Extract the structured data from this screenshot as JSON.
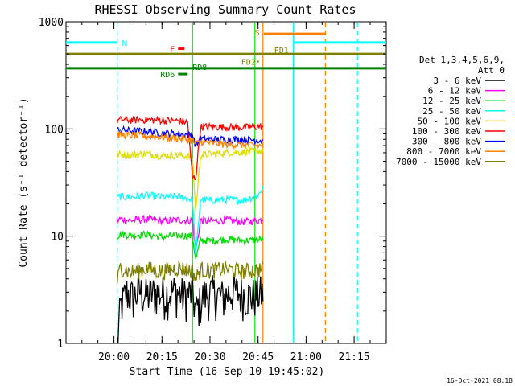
{
  "chart_data": {
    "type": "line",
    "title": "RHESSI Observing Summary Count Rates",
    "xlabel": "Start Time (16-Sep-10 19:45:02)",
    "ylabel": "Count Rate (s⁻¹ detector⁻¹)",
    "x_start": "19:45:02",
    "x_end": "21:25",
    "xlim_minutes": [
      0,
      100
    ],
    "ylim": [
      1,
      1000
    ],
    "y_scale": "log",
    "x_ticks": [
      "20:00",
      "20:15",
      "20:30",
      "20:45",
      "21:00",
      "21:15"
    ],
    "y_ticks": [
      "1",
      "10",
      "100",
      "1000"
    ],
    "legend_header": [
      "Det 1,3,4,5,6,9,",
      "Att 0"
    ],
    "legend_position": "right",
    "footer_date": "16-Oct-2021 08:18",
    "series": [
      {
        "name": "3 - 6 keV",
        "color": "#000000",
        "x": [
          16,
          17,
          19,
          21,
          23,
          25,
          28,
          31,
          34,
          37,
          39.5,
          40.5,
          43,
          46,
          49,
          52,
          55,
          58,
          61.5
        ],
        "y": [
          1,
          2.2,
          3.0,
          2.7,
          3.1,
          2.8,
          3.0,
          2.9,
          3.1,
          2.8,
          3.0,
          2.0,
          2.8,
          3.0,
          2.7,
          3.1,
          2.9,
          2.8,
          3.0
        ]
      },
      {
        "name": "6 - 12 keV",
        "color": "#ff00ff",
        "x": [
          16,
          17,
          20,
          25,
          30,
          35,
          39.5,
          40.5,
          42,
          45,
          50,
          55,
          60,
          61.5
        ],
        "y": [
          14,
          14.5,
          14,
          14.5,
          13.8,
          14.2,
          14,
          7.2,
          14,
          13.8,
          14.2,
          13.6,
          14,
          14.5
        ]
      },
      {
        "name": "12 - 25 keV",
        "color": "#00dd00",
        "x": [
          16,
          17,
          20,
          25,
          30,
          35,
          39.5,
          40.5,
          42,
          45,
          50,
          55,
          60,
          61.5
        ],
        "y": [
          10,
          10.5,
          10.2,
          10.4,
          9.8,
          10.2,
          10,
          6.0,
          9.2,
          9.0,
          9.4,
          9.1,
          9.2,
          9.5
        ]
      },
      {
        "name": "25 - 50 keV",
        "color": "#00ffff",
        "x": [
          16,
          17,
          20,
          25,
          30,
          35,
          39.5,
          40.5,
          42,
          45,
          50,
          55,
          60,
          61.5
        ],
        "y": [
          23,
          23.5,
          23,
          24,
          23.2,
          23.5,
          22,
          6.5,
          22,
          21.5,
          22,
          21.5,
          24,
          29
        ]
      },
      {
        "name": "50 - 100 keV",
        "color": "#dddd00",
        "x": [
          16,
          17,
          20,
          25,
          30,
          35,
          39.5,
          40.5,
          42,
          45,
          50,
          55,
          60,
          61.5
        ],
        "y": [
          57,
          58,
          57,
          59,
          56,
          57,
          55,
          17,
          57,
          58,
          60,
          61,
          62,
          62
        ]
      },
      {
        "name": "100 - 300 keV",
        "color": "#ff0000",
        "x": [
          16,
          17,
          20,
          25,
          30,
          35,
          38,
          39.5,
          40.5,
          42,
          45,
          50,
          55,
          60,
          61.5
        ],
        "y": [
          120,
          122,
          121,
          122,
          120,
          119,
          115,
          35,
          35,
          104,
          105,
          104,
          103,
          105,
          105
        ]
      },
      {
        "name": "300 - 800 keV",
        "color": "#0000ff",
        "x": [
          16,
          17,
          20,
          25,
          30,
          35,
          39.5,
          40.5,
          42,
          45,
          50,
          55,
          60,
          61.5
        ],
        "y": [
          97,
          98,
          96,
          95,
          92,
          90,
          88,
          70,
          81,
          80,
          80,
          80,
          79,
          78
        ]
      },
      {
        "name": "800 - 7000 keV",
        "color": "#ff8000",
        "x": [
          16,
          17,
          20,
          25,
          30,
          35,
          39.5,
          40.5,
          42,
          45,
          50,
          55,
          60,
          61.5
        ],
        "y": [
          88,
          89,
          87,
          86,
          84,
          82,
          78,
          72,
          76,
          74,
          72,
          71,
          70,
          70
        ]
      },
      {
        "name": "7000 - 15000 keV",
        "color": "#808000",
        "x": [
          16,
          17,
          20,
          25,
          30,
          35,
          39.5,
          40.5,
          42,
          45,
          50,
          55,
          60,
          61.5
        ],
        "y": [
          3.8,
          5.2,
          4.6,
          5.0,
          4.7,
          5.1,
          4.8,
          4.0,
          4.9,
          4.8,
          5.0,
          4.7,
          4.9,
          5.0
        ]
      }
    ],
    "orbit_bars": [
      {
        "label": "N",
        "color": "#00ffff",
        "y": 640,
        "x0": 0,
        "x1": 16
      },
      {
        "label": "",
        "color": "#00ffff",
        "y": 640,
        "x0": 71,
        "x1": 100
      },
      {
        "label": "S",
        "color": "#ff8000",
        "y": 770,
        "x0": 61.8,
        "x1": 81
      },
      {
        "label": "F",
        "color": "#ff0000",
        "y": 560,
        "x0": 35,
        "x1": 37
      },
      {
        "label": "FD1",
        "color": "#808000",
        "y": 500,
        "x0": 0,
        "x1": 100
      },
      {
        "label": "RD8",
        "color": "#008000",
        "y": 368,
        "x0": 0,
        "x1": 100
      },
      {
        "label": "RD6",
        "color": "#008000",
        "y": 325,
        "x0": 35,
        "x1": 38
      }
    ],
    "annotations": [
      {
        "text": "FD2",
        "color": "#808000",
        "x": 60,
        "y": 425
      }
    ],
    "vlines": [
      {
        "x": 16,
        "color": "#00ffff",
        "style": "dashed"
      },
      {
        "x": 39.5,
        "color": "#00dd00",
        "style": "solid"
      },
      {
        "x": 59,
        "color": "#00dd00",
        "style": "solid"
      },
      {
        "x": 61.5,
        "color": "#ff8000",
        "style": "solid"
      },
      {
        "x": 71,
        "color": "#00ffff",
        "style": "solid"
      },
      {
        "x": 81,
        "color": "#ff8000",
        "style": "dashed"
      },
      {
        "x": 91,
        "color": "#00ffff",
        "style": "dashed"
      }
    ]
  }
}
